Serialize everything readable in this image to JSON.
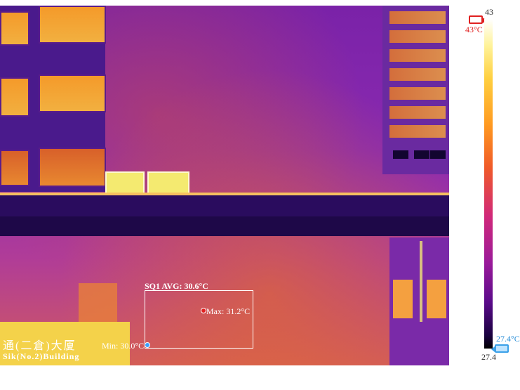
{
  "measurement": {
    "roi_title": "SQ1 AVG: 30.6°C",
    "max_label": "Max: 31.2°C",
    "min_label": "Min: 30.0°C"
  },
  "scale": {
    "top_value": "43",
    "bottom_value": "27.4",
    "high_marker_label": "43°C",
    "low_marker_label": "27.4°C",
    "palette": "iron",
    "high_color": "#e02020",
    "low_color": "#3aa0e8"
  },
  "image": {
    "sign_text_line1": "通(二倉)大厦",
    "sign_text_line2": "Sik(No.2)Building"
  }
}
